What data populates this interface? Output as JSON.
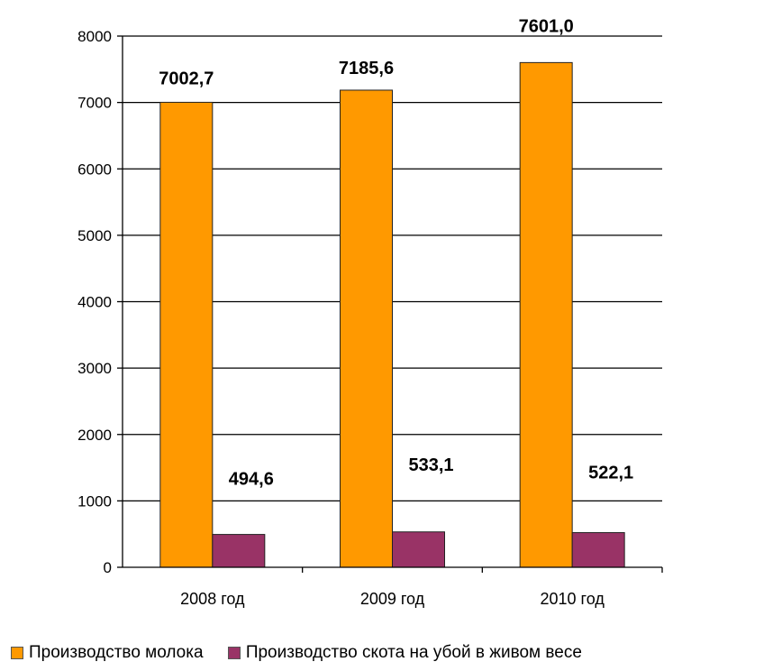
{
  "chart_data": {
    "type": "bar",
    "categories": [
      "2008 год",
      "2009 год",
      "2010 год"
    ],
    "series": [
      {
        "name": "Производство молока",
        "values": [
          7002.7,
          7185.6,
          7601.0
        ],
        "labels": [
          "7002,7",
          "7185,6",
          "7601,0"
        ],
        "color": "#FF9900"
      },
      {
        "name": "Производство скота на убой в живом весе",
        "values": [
          494.6,
          533.1,
          522.1
        ],
        "labels": [
          "494,6",
          "533,1",
          "522,1"
        ],
        "color": "#993366"
      }
    ],
    "ylim": [
      0,
      8000
    ],
    "yticks": [
      0,
      1000,
      2000,
      3000,
      4000,
      5000,
      6000,
      7000,
      8000
    ],
    "grid": true,
    "legend_position": "bottom",
    "title": "",
    "xlabel": "",
    "ylabel": ""
  }
}
